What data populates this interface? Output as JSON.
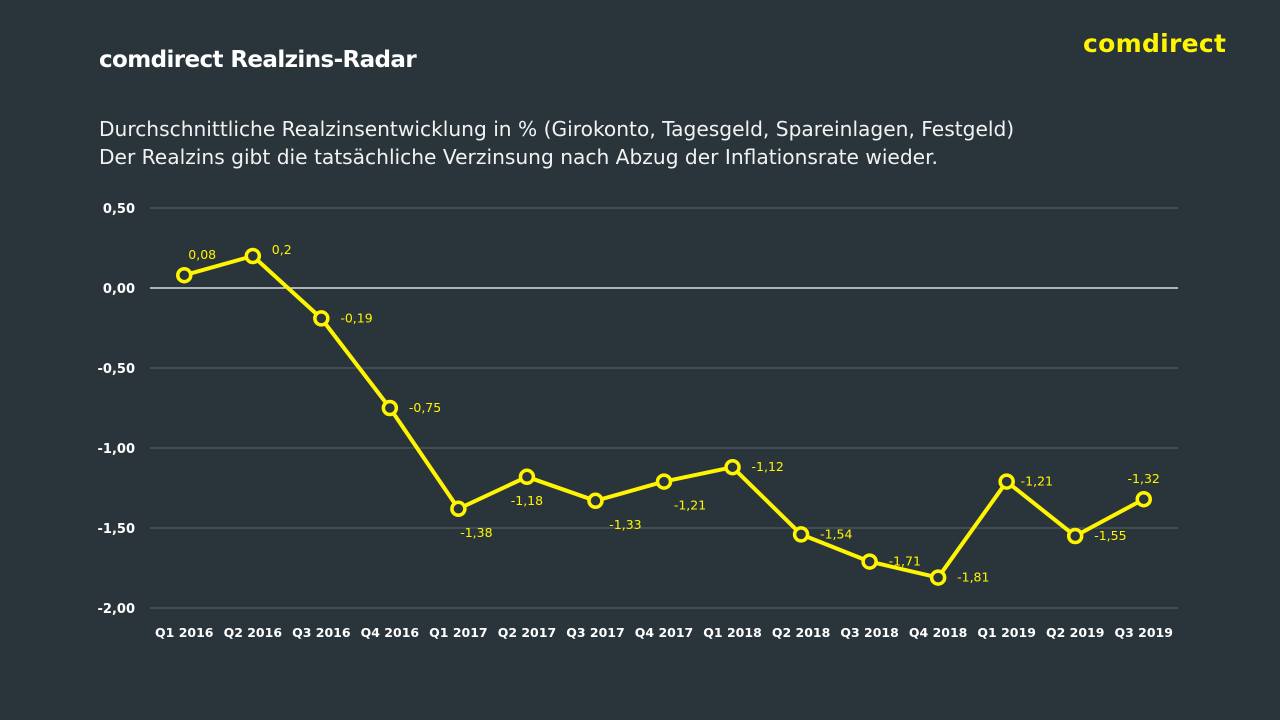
{
  "header": {
    "title": "comdirect Realzins-Radar",
    "logo": "comdirect",
    "subtitle_line1": "Durchschnittliche Realzinsentwicklung in % (Girokonto, Tagesgeld, Spareinlagen, Festgeld)",
    "subtitle_line2": "Der Realzins gibt die tatsächliche Verzinsung nach Abzug der Inflationsrate wieder."
  },
  "colors": {
    "background": "#29353a",
    "line": "#fff500",
    "marker_fill": "#29353a",
    "gridline": "#5b6569",
    "zero_line": "#ffffff",
    "axis_text": "#ffffff",
    "logo": "#fff500"
  },
  "chart_data": {
    "type": "line",
    "categories": [
      "Q1 2016",
      "Q2 2016",
      "Q3 2016",
      "Q4 2016",
      "Q1 2017",
      "Q2 2017",
      "Q3 2017",
      "Q4 2017",
      "Q1 2018",
      "Q2 2018",
      "Q3 2018",
      "Q4 2018",
      "Q1 2019",
      "Q2 2019",
      "Q3 2019"
    ],
    "series": [
      {
        "values": [
          0.08,
          0.2,
          -0.19,
          -0.75,
          -1.38,
          -1.18,
          -1.33,
          -1.21,
          -1.12,
          -1.54,
          -1.71,
          -1.81,
          -1.21,
          -1.55,
          -1.32
        ],
        "labels": [
          "0,08",
          "0,2",
          "-0,19",
          "-0,75",
          "-1,38",
          "-1,18",
          "-1,33",
          "-1,21",
          "-1,12",
          "-1,54",
          "-1,71",
          "-1,81",
          "-1,21",
          "-1,55",
          "-1,32"
        ]
      }
    ],
    "ylim": [
      -2.0,
      0.5
    ],
    "yticks": [
      0.5,
      0.0,
      -0.5,
      -1.0,
      -1.5,
      -2.0
    ],
    "ytick_labels": [
      "0,50",
      "0,00",
      "-0,50",
      "-1,00",
      "-1,50",
      "-2,00"
    ],
    "grid": true,
    "legend": "none"
  }
}
